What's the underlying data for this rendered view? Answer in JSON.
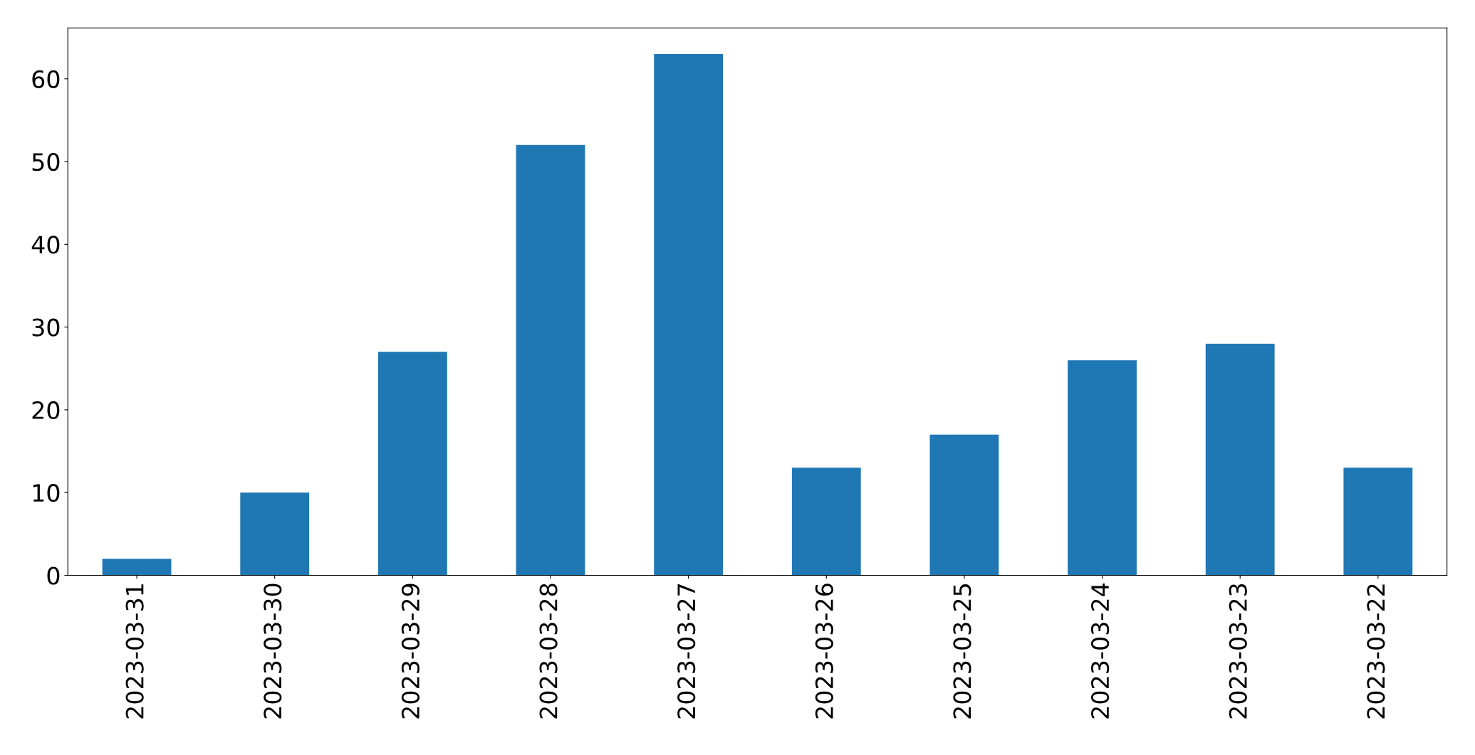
{
  "chart_data": {
    "type": "bar",
    "categories": [
      "2023-03-31",
      "2023-03-30",
      "2023-03-29",
      "2023-03-28",
      "2023-03-27",
      "2023-03-26",
      "2023-03-25",
      "2023-03-24",
      "2023-03-23",
      "2023-03-22"
    ],
    "values": [
      2,
      10,
      27,
      52,
      63,
      13,
      17,
      26,
      28,
      13
    ],
    "color": "#1f77b4",
    "ylim": [
      0,
      66.15
    ],
    "yticks": [
      0,
      10,
      20,
      30,
      40,
      50,
      60
    ],
    "grid": false,
    "legend": false
  }
}
